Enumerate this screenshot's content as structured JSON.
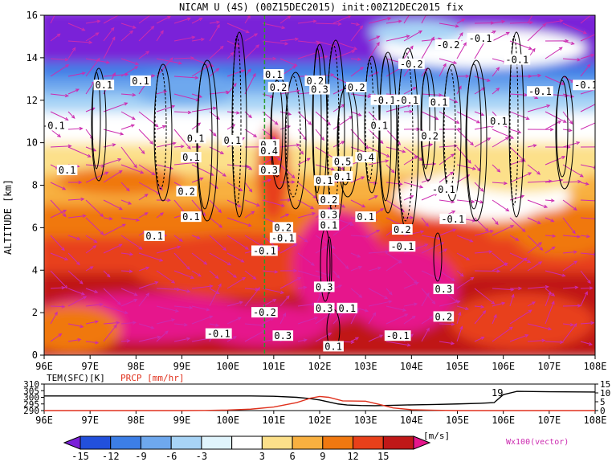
{
  "chart_data": [
    {
      "type": "heatmap",
      "title": "NICAM U (4S) (00Z15DEC2015) init:00Z12DEC2015 fix",
      "ylabel": "ALTITUDE [km]",
      "xlabel": "",
      "x_ticks": [
        "96E",
        "97E",
        "98E",
        "99E",
        "100E",
        "101E",
        "102E",
        "103E",
        "104E",
        "105E",
        "106E",
        "107E",
        "108E"
      ],
      "y_ticks": [
        "0",
        "2",
        "4",
        "6",
        "8",
        "10",
        "12",
        "14",
        "16"
      ],
      "xlim": [
        96,
        108
      ],
      "ylim": [
        0,
        16
      ],
      "marker_line_x": 100.8,
      "contour_labels": [
        {
          "text": "0.1",
          "x": 97.3,
          "y": 12.7
        },
        {
          "text": "0.1",
          "x": 98.1,
          "y": 12.9
        },
        {
          "text": "0.1",
          "x": 101.0,
          "y": 13.2
        },
        {
          "text": "0.2",
          "x": 101.1,
          "y": 12.6
        },
        {
          "text": "0.2",
          "x": 101.9,
          "y": 12.9
        },
        {
          "text": "0.3",
          "x": 102.0,
          "y": 12.5
        },
        {
          "text": "0.2",
          "x": 102.8,
          "y": 12.6
        },
        {
          "text": "-0.2",
          "x": 104.0,
          "y": 13.7
        },
        {
          "text": "-0.2",
          "x": 104.8,
          "y": 14.6
        },
        {
          "text": "-0.1",
          "x": 105.5,
          "y": 14.9
        },
        {
          "text": "-0.1",
          "x": 106.3,
          "y": 13.9
        },
        {
          "text": "-0.1",
          "x": 106.8,
          "y": 12.4
        },
        {
          "text": "-0.1",
          "x": 107.8,
          "y": 12.7
        },
        {
          "text": "-0.1",
          "x": 103.4,
          "y": 12.0
        },
        {
          "text": "-0.1",
          "x": 103.9,
          "y": 12.0
        },
        {
          "text": "0.1",
          "x": 104.6,
          "y": 11.9
        },
        {
          "text": "0.1",
          "x": 105.9,
          "y": 11.0
        },
        {
          "text": "0.2",
          "x": 104.4,
          "y": 10.3
        },
        {
          "text": "0.1",
          "x": 103.3,
          "y": 10.8
        },
        {
          "text": "-0.1",
          "x": 96.2,
          "y": 10.8
        },
        {
          "text": "0.1",
          "x": 96.5,
          "y": 8.7
        },
        {
          "text": "0.1",
          "x": 99.3,
          "y": 10.2
        },
        {
          "text": "0.1",
          "x": 99.2,
          "y": 9.3
        },
        {
          "text": "0.1",
          "x": 100.1,
          "y": 10.1
        },
        {
          "text": "0.1",
          "x": 100.9,
          "y": 9.9
        },
        {
          "text": "0.4",
          "x": 100.9,
          "y": 9.6
        },
        {
          "text": "0.3",
          "x": 100.9,
          "y": 8.7
        },
        {
          "text": "0.5",
          "x": 102.5,
          "y": 9.1
        },
        {
          "text": "0.4",
          "x": 103.0,
          "y": 9.3
        },
        {
          "text": "0.1",
          "x": 102.1,
          "y": 8.2
        },
        {
          "text": "0.1",
          "x": 102.5,
          "y": 8.4
        },
        {
          "text": "-0.1",
          "x": 104.7,
          "y": 7.8
        },
        {
          "text": "0.2",
          "x": 99.1,
          "y": 7.7
        },
        {
          "text": "0.1",
          "x": 99.2,
          "y": 6.5
        },
        {
          "text": "0.2",
          "x": 102.2,
          "y": 7.3
        },
        {
          "text": "0.3",
          "x": 102.2,
          "y": 6.6
        },
        {
          "text": "0.1",
          "x": 102.2,
          "y": 6.1
        },
        {
          "text": "0.1",
          "x": 103.0,
          "y": 6.5
        },
        {
          "text": "0.2",
          "x": 103.8,
          "y": 5.9
        },
        {
          "text": "-0.1",
          "x": 104.9,
          "y": 6.4
        },
        {
          "text": "0.1",
          "x": 98.4,
          "y": 5.6
        },
        {
          "text": "0.2",
          "x": 101.2,
          "y": 6.0
        },
        {
          "text": "-0.1",
          "x": 101.2,
          "y": 5.5
        },
        {
          "text": "-0.1",
          "x": 100.8,
          "y": 4.9
        },
        {
          "text": "-0.1",
          "x": 103.8,
          "y": 5.1
        },
        {
          "text": "0.3",
          "x": 102.1,
          "y": 3.2
        },
        {
          "text": "0.3",
          "x": 104.7,
          "y": 3.1
        },
        {
          "text": "0.3",
          "x": 102.1,
          "y": 2.2
        },
        {
          "text": "0.1",
          "x": 102.6,
          "y": 2.2
        },
        {
          "text": "-0.2",
          "x": 100.8,
          "y": 2.0
        },
        {
          "text": "0.2",
          "x": 104.7,
          "y": 1.8
        },
        {
          "text": "-0.1",
          "x": 99.8,
          "y": 1.0
        },
        {
          "text": "0.3",
          "x": 101.2,
          "y": 0.9
        },
        {
          "text": "0.1",
          "x": 102.3,
          "y": 0.4
        },
        {
          "text": "-0.1",
          "x": 103.7,
          "y": 0.9
        }
      ]
    },
    {
      "type": "line",
      "label_tem": "TEM(SFC)[K]",
      "label_prcp": "PRCP [mm/hr]",
      "x_ticks": [
        "96E",
        "97E",
        "98E",
        "99E",
        "100E",
        "101E",
        "102E",
        "103E",
        "104E",
        "105E",
        "106E",
        "107E",
        "108E"
      ],
      "left_ticks": [
        "310",
        "305",
        "300",
        "295",
        "290"
      ],
      "right_ticks": [
        "15",
        "10",
        "5",
        "0"
      ],
      "annotation": "19",
      "series": [
        {
          "name": "TEM(SFC)[K]",
          "color": "#000000",
          "axis": "left",
          "x": [
            96,
            97,
            98,
            99,
            100,
            100.5,
            101,
            101.5,
            101.8,
            102,
            102.2,
            102.4,
            102.6,
            102.9,
            103.2,
            103.6,
            104,
            104.5,
            105,
            105.5,
            105.8,
            106,
            106.3,
            107,
            108
          ],
          "y": [
            301,
            301,
            301,
            301,
            301,
            301,
            300.8,
            300,
            299,
            298,
            296.5,
            295,
            294.2,
            293.8,
            293.7,
            294,
            294.3,
            294.6,
            295,
            295.5,
            296,
            302,
            304.5,
            304.2,
            304
          ]
        },
        {
          "name": "PRCP [mm/hr]",
          "color": "#e0311d",
          "axis": "right",
          "x": [
            96,
            98,
            99,
            99.5,
            100,
            100.5,
            101,
            101.5,
            101.8,
            102,
            102.2,
            102.5,
            103,
            103.3,
            103.6,
            104,
            104.5,
            105,
            108
          ],
          "y": [
            0,
            0,
            0,
            0.1,
            0.3,
            0.8,
            2,
            4.5,
            7,
            8,
            7.5,
            5.5,
            5.3,
            3.5,
            1.5,
            0.5,
            0.2,
            0,
            0
          ]
        }
      ]
    }
  ],
  "colorbar": {
    "ticks": [
      "-15",
      "-12",
      "-9",
      "-6",
      "-3",
      "3",
      "6",
      "9",
      "12",
      "15"
    ],
    "unit": "[m/s]",
    "colors": [
      "#7a20d8",
      "#2250dc",
      "#3c7ee6",
      "#6ea8ee",
      "#a8d4f6",
      "#e0f4fc",
      "#ffffff",
      "#fce08a",
      "#f8b040",
      "#f07810",
      "#e8401a",
      "#c01818",
      "#e6168c"
    ]
  },
  "vector_label": "Wx100(vector)"
}
